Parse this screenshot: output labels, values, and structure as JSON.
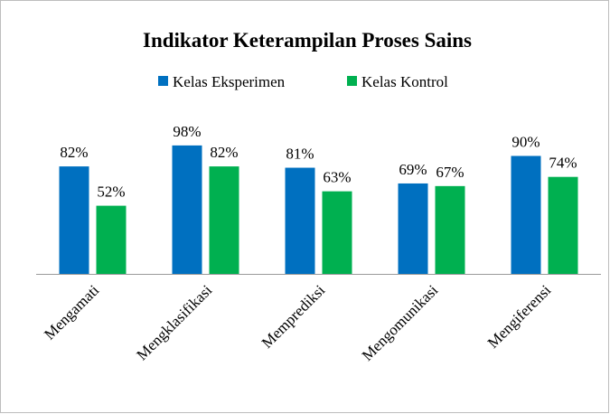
{
  "chart_data": {
    "type": "bar",
    "title": "Indikator Keterampilan Proses Sains",
    "categories": [
      "Mengamati",
      "Mengklasifikasi",
      "Memprediksi",
      "Mengomunikasi",
      "Mengiferensi"
    ],
    "series": [
      {
        "name": "Kelas Eksperimen",
        "color": "#0070c0",
        "values": [
          82,
          98,
          81,
          69,
          90
        ],
        "value_labels": [
          "82%",
          "98%",
          "81%",
          "69%",
          "90%"
        ]
      },
      {
        "name": "Kelas Kontrol",
        "color": "#00b050",
        "values": [
          52,
          82,
          63,
          67,
          74
        ],
        "value_labels": [
          "52%",
          "82%",
          "63%",
          "67%",
          "74%"
        ]
      }
    ]
  }
}
